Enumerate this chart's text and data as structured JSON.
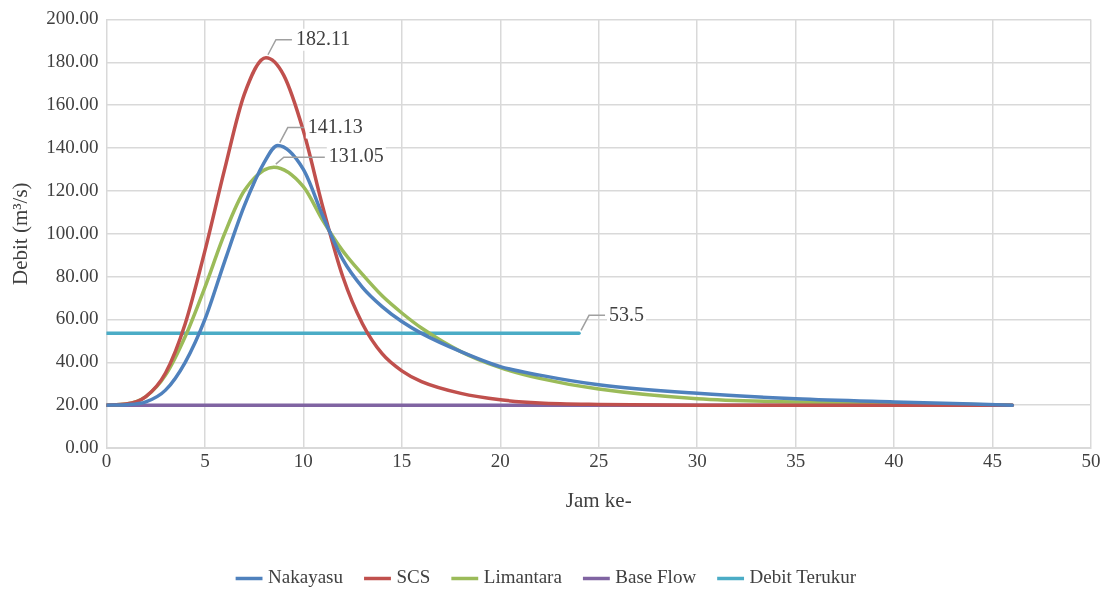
{
  "chart_data": {
    "type": "line",
    "xlabel": "Jam ke-",
    "ylabel": "Debit (m³/s)",
    "xlim": [
      0,
      50
    ],
    "xticks": [
      0,
      5,
      10,
      15,
      20,
      25,
      30,
      35,
      40,
      45,
      50
    ],
    "ylim": [
      0,
      200
    ],
    "yticks": [
      {
        "value": 0,
        "label": "0.00"
      },
      {
        "value": 20,
        "label": "20.00"
      },
      {
        "value": 40,
        "label": "40.00"
      },
      {
        "value": 60,
        "label": "60.00"
      },
      {
        "value": 80,
        "label": "80.00"
      },
      {
        "value": 100,
        "label": "100.00"
      },
      {
        "value": 120,
        "label": "120.00"
      },
      {
        "value": 140,
        "label": "140.00"
      },
      {
        "value": 160,
        "label": "160.00"
      },
      {
        "value": 180,
        "label": "180.00"
      },
      {
        "value": 200,
        "label": "200.00"
      }
    ],
    "grid": true,
    "legend": "bottom",
    "marker": "none",
    "line_style": "solid",
    "series": [
      {
        "name": "Nakayasu",
        "color": "#4f81bd",
        "x": [
          0,
          1,
          2,
          3,
          4,
          5,
          6,
          7,
          8,
          8.7,
          10,
          11,
          12,
          13,
          14,
          15,
          16,
          18,
          20,
          22,
          25,
          30,
          35,
          40,
          46
        ],
        "values": [
          20,
          20.2,
          21.5,
          27,
          40,
          60,
          87,
          113,
          133,
          141.13,
          130,
          108,
          88,
          75,
          66,
          59,
          53.5,
          45,
          38,
          34,
          29.5,
          25.5,
          23,
          21.5,
          20
        ],
        "value_labels": [
          null,
          null,
          null,
          null,
          null,
          null,
          null,
          null,
          null,
          "141.13",
          null,
          null,
          null,
          null,
          null,
          null,
          null,
          null,
          null,
          null,
          null,
          null,
          null,
          null,
          null
        ]
      },
      {
        "name": "SCS",
        "color": "#c0504d",
        "x": [
          0,
          1,
          2,
          3,
          4,
          5,
          6,
          7,
          8.1,
          9,
          10,
          11,
          12,
          13,
          14,
          15,
          16,
          18,
          20,
          22,
          25,
          30,
          46
        ],
        "values": [
          20,
          20.5,
          24,
          35,
          58,
          92,
          130,
          165,
          182.11,
          174,
          148,
          112,
          80,
          58,
          44,
          36,
          31,
          25.5,
          22.5,
          21,
          20.3,
          20,
          20
        ],
        "value_labels": [
          null,
          null,
          null,
          null,
          null,
          null,
          null,
          null,
          "182.11",
          null,
          null,
          null,
          null,
          null,
          null,
          null,
          null,
          null,
          null,
          null,
          null,
          null,
          null
        ]
      },
      {
        "name": "Limantara",
        "color": "#9bbb59",
        "x": [
          0,
          1,
          2,
          3,
          4,
          5,
          6,
          7,
          8.5,
          10,
          11,
          12,
          13,
          14,
          15,
          16,
          18,
          20,
          22,
          25,
          30,
          35,
          40,
          46
        ],
        "values": [
          20,
          20.5,
          24,
          34,
          52,
          75,
          100,
          120,
          131.05,
          122,
          106,
          92,
          81,
          71,
          63,
          56,
          45,
          37.5,
          32.5,
          27.5,
          23,
          21.5,
          20.8,
          20
        ],
        "value_labels": [
          null,
          null,
          null,
          null,
          null,
          null,
          null,
          null,
          "131.05",
          null,
          null,
          null,
          null,
          null,
          null,
          null,
          null,
          null,
          null,
          null,
          null,
          null,
          null,
          null
        ]
      },
      {
        "name": "Base Flow",
        "color": "#8064a2",
        "x": [
          0,
          46
        ],
        "values": [
          20,
          20
        ]
      },
      {
        "name": "Debit Terukur",
        "color": "#4bacc6",
        "x": [
          0,
          24
        ],
        "values": [
          53.5,
          53.5
        ],
        "value_labels": [
          null,
          "53.5"
        ]
      }
    ]
  }
}
